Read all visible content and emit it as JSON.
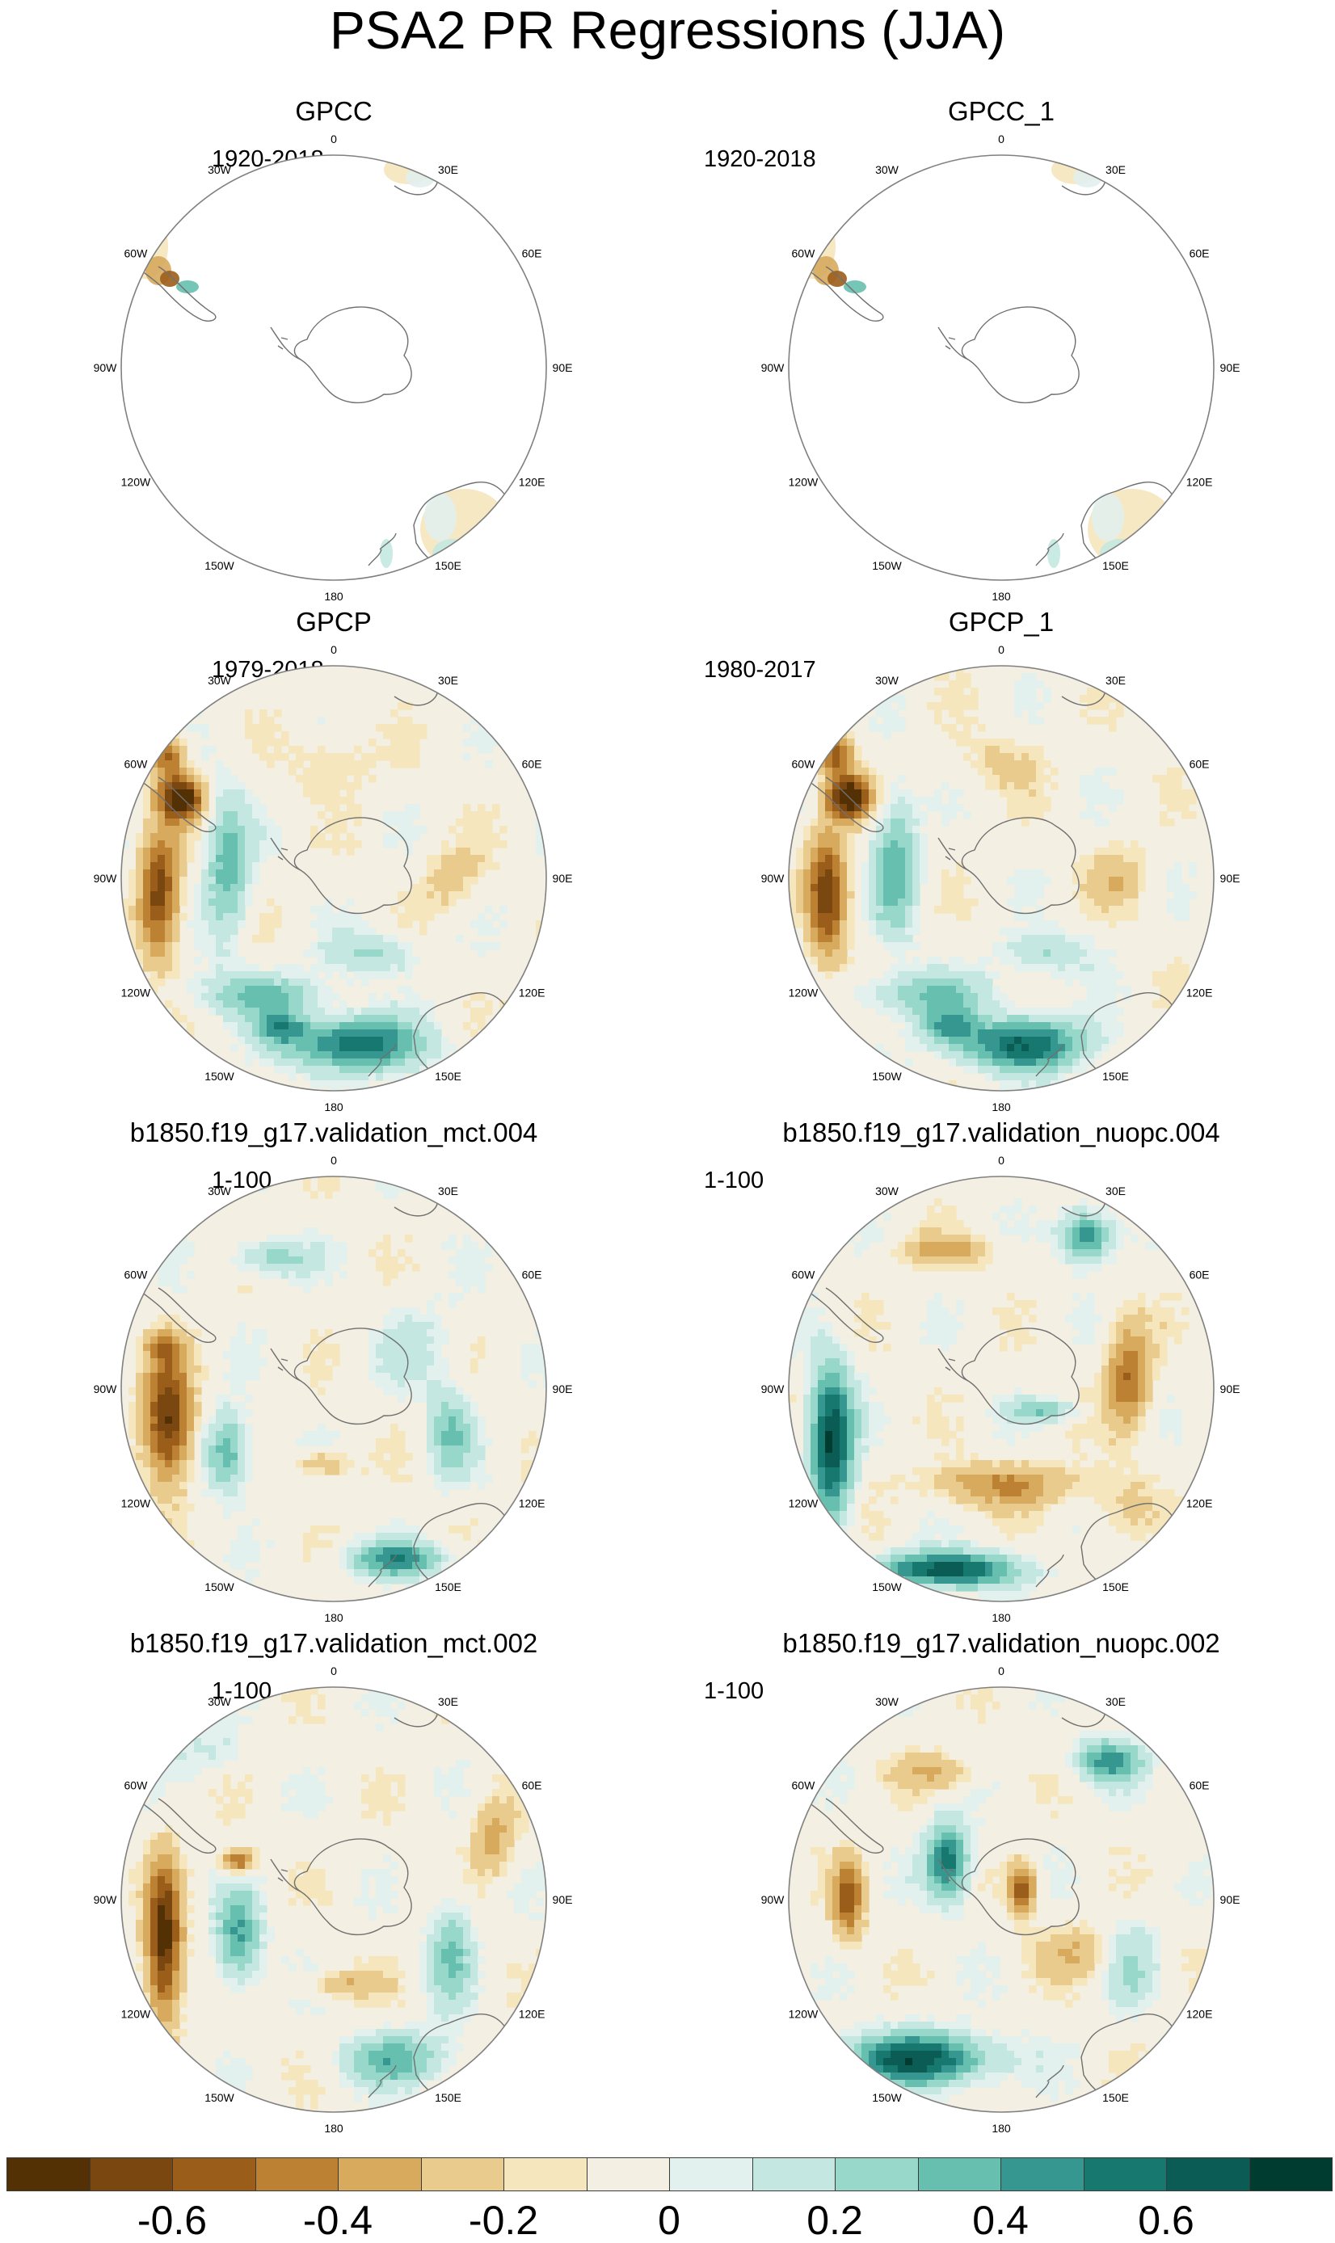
{
  "title": "PSA2 PR Regressions (JJA)",
  "colors": {
    "map_border": "#808080",
    "coast": "#707070",
    "land_default": "#f3efe2"
  },
  "panels": [
    {
      "id": "gpcc",
      "title": "GPCC",
      "period": "1920-2018",
      "pattern": "land_only",
      "seed": 3
    },
    {
      "id": "gpcc1",
      "title": "GPCC_1",
      "period": "1920-2018",
      "pattern": "land_only",
      "seed": 5
    },
    {
      "id": "gpcp",
      "title": "GPCP",
      "period": "1979-2018",
      "pattern": "obs",
      "seed": 11
    },
    {
      "id": "gpcp1",
      "title": "GPCP_1",
      "period": "1980-2017",
      "pattern": "obs",
      "seed": 13
    },
    {
      "id": "mct004",
      "title": "b1850.f19_g17.validation_mct.004",
      "period": "1-100",
      "pattern": "mct004",
      "seed": 21
    },
    {
      "id": "nuopc004",
      "title": "b1850.f19_g17.validation_nuopc.004",
      "period": "1-100",
      "pattern": "nuopc004",
      "seed": 23
    },
    {
      "id": "mct002",
      "title": "b1850.f19_g17.validation_mct.002",
      "period": "1-100",
      "pattern": "mct002",
      "seed": 31
    },
    {
      "id": "nuopc002",
      "title": "b1850.f19_g17.validation_nuopc.002",
      "period": "1-100",
      "pattern": "nuopc002",
      "seed": 37
    }
  ],
  "lon_labels": [
    "0",
    "30E",
    "60E",
    "90E",
    "120E",
    "150E",
    "180",
    "150W",
    "120W",
    "90W",
    "60W",
    "30W"
  ],
  "colorbar": {
    "colors": [
      "#543005",
      "#7a4710",
      "#9b5e1a",
      "#bd8134",
      "#d7aa5e",
      "#e8cb8d",
      "#f5e6bd",
      "#f3efe2",
      "#e2f0ee",
      "#c4e8e1",
      "#97d8cb",
      "#67c0af",
      "#35978f",
      "#16786f",
      "#0b5c54",
      "#003c30"
    ],
    "levels": [
      -0.7,
      -0.6,
      -0.5,
      -0.4,
      -0.3,
      -0.2,
      -0.1,
      -0.05,
      0.05,
      0.1,
      0.2,
      0.3,
      0.4,
      0.5,
      0.6,
      0.7
    ],
    "tick_labels": [
      "-0.6",
      "-0.4",
      "-0.2",
      "0",
      "0.2",
      "0.4",
      "0.6"
    ]
  }
}
